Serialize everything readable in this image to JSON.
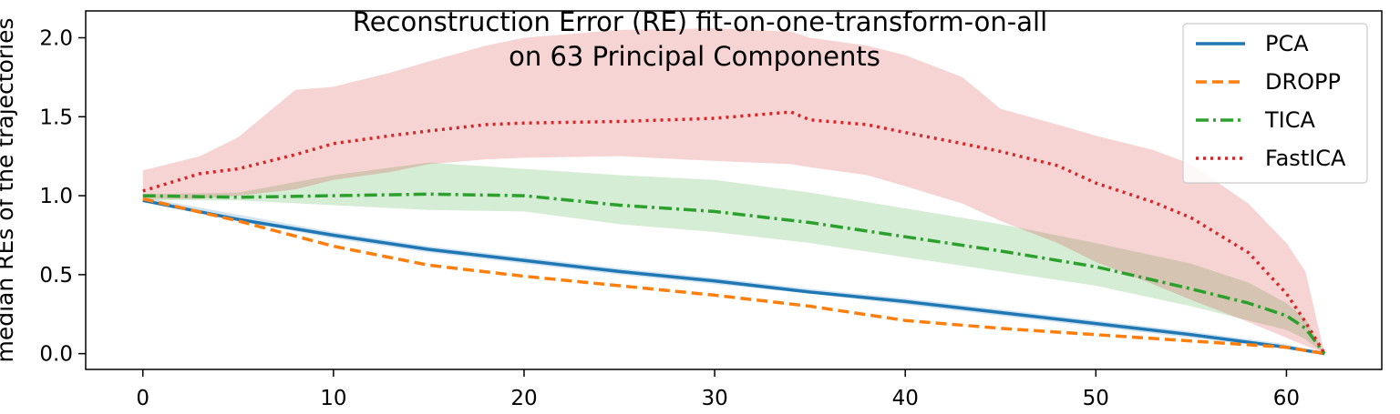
{
  "chart_data": {
    "type": "line",
    "title": "Reconstruction Error (RE) fit-on-one-transform-on-all",
    "subtitle": "on 63 Principal Components",
    "xlabel": "",
    "ylabel": "median REs of the trajectories",
    "xlim": [
      -3,
      65
    ],
    "ylim": [
      -0.1,
      2.17
    ],
    "xticks": [
      0,
      10,
      20,
      30,
      40,
      50,
      60
    ],
    "yticks": [
      0.0,
      0.5,
      1.0,
      1.5,
      2.0
    ],
    "ytick_labels": [
      "0.0",
      "0.5",
      "1.0",
      "1.5",
      "2.0"
    ],
    "legend_position": "top-right",
    "grid": false,
    "series": [
      {
        "name": "PCA",
        "color": "#1f77b4",
        "style": "solid",
        "x": [
          0,
          5,
          10,
          15,
          20,
          25,
          30,
          35,
          40,
          45,
          50,
          55,
          60,
          62
        ],
        "y": [
          0.97,
          0.85,
          0.75,
          0.66,
          0.59,
          0.52,
          0.46,
          0.39,
          0.33,
          0.26,
          0.19,
          0.12,
          0.04,
          0.0
        ],
        "band_lower": [
          0.97,
          0.84,
          0.73,
          0.64,
          0.57,
          0.5,
          0.44,
          0.38,
          0.31,
          0.24,
          0.17,
          0.1,
          0.03,
          0.0
        ],
        "band_upper": [
          0.99,
          0.88,
          0.77,
          0.68,
          0.61,
          0.54,
          0.48,
          0.41,
          0.35,
          0.28,
          0.21,
          0.14,
          0.06,
          0.0
        ]
      },
      {
        "name": "DROPP",
        "color": "#ff7f0e",
        "style": "dashed",
        "x": [
          0,
          5,
          10,
          15,
          20,
          25,
          30,
          35,
          40,
          45,
          50,
          55,
          60,
          62
        ],
        "y": [
          0.98,
          0.84,
          0.68,
          0.56,
          0.49,
          0.43,
          0.37,
          0.3,
          0.21,
          0.16,
          0.12,
          0.08,
          0.04,
          0.0
        ]
      },
      {
        "name": "TICA",
        "color": "#2ca02c",
        "style": "dashdot",
        "x": [
          0,
          5,
          10,
          15,
          20,
          25,
          30,
          35,
          40,
          45,
          50,
          55,
          58,
          60,
          61,
          62
        ],
        "y": [
          1.0,
          0.99,
          1.0,
          1.01,
          1.0,
          0.94,
          0.9,
          0.83,
          0.74,
          0.65,
          0.55,
          0.41,
          0.32,
          0.24,
          0.16,
          0.0
        ],
        "band_lower": [
          0.97,
          0.97,
          0.94,
          0.91,
          0.9,
          0.82,
          0.77,
          0.7,
          0.61,
          0.52,
          0.43,
          0.3,
          0.21,
          0.15,
          0.09,
          0.0
        ],
        "band_upper": [
          1.01,
          1.02,
          1.13,
          1.21,
          1.17,
          1.13,
          1.1,
          1.02,
          0.92,
          0.82,
          0.7,
          0.57,
          0.45,
          0.32,
          0.22,
          0.0
        ]
      },
      {
        "name": "FastICA",
        "color": "#d62728",
        "style": "dotted",
        "x": [
          0,
          3,
          5,
          8,
          10,
          13,
          15,
          18,
          20,
          25,
          30,
          34,
          35,
          38,
          40,
          43,
          45,
          48,
          50,
          53,
          55,
          58,
          60,
          61,
          62
        ],
        "y": [
          1.03,
          1.14,
          1.17,
          1.26,
          1.33,
          1.38,
          1.41,
          1.45,
          1.46,
          1.47,
          1.49,
          1.53,
          1.48,
          1.45,
          1.4,
          1.33,
          1.28,
          1.19,
          1.08,
          0.96,
          0.86,
          0.64,
          0.38,
          0.2,
          0.0
        ],
        "band_lower": [
          0.98,
          0.98,
          1.0,
          1.04,
          1.1,
          1.15,
          1.2,
          1.23,
          1.24,
          1.25,
          1.22,
          1.2,
          1.18,
          1.13,
          1.06,
          0.95,
          0.84,
          0.7,
          0.58,
          0.44,
          0.34,
          0.2,
          0.1,
          0.05,
          0.0
        ],
        "band_upper": [
          1.16,
          1.25,
          1.37,
          1.67,
          1.69,
          1.78,
          1.85,
          1.95,
          2.0,
          2.05,
          2.06,
          2.04,
          2.0,
          1.95,
          1.89,
          1.75,
          1.55,
          1.45,
          1.38,
          1.29,
          1.2,
          0.95,
          0.7,
          0.52,
          0.0
        ]
      }
    ]
  }
}
